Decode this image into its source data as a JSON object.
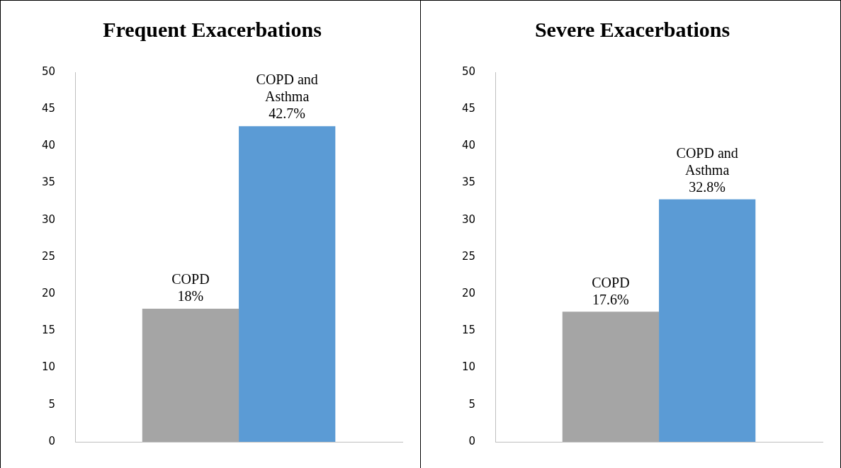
{
  "chart_data": [
    {
      "type": "bar",
      "title": "Frequent Exacerbations",
      "categories": [
        null
      ],
      "series": [
        {
          "name": "COPD",
          "color": "#a5a5a5",
          "values": [
            18
          ],
          "value_labels": [
            "18%"
          ]
        },
        {
          "name": "COPD and Asthma",
          "color": "#5b9bd5",
          "values": [
            42.7
          ],
          "value_labels": [
            "42.7%"
          ]
        }
      ],
      "ylim": [
        0,
        50
      ],
      "yticks": [
        0,
        5,
        10,
        15,
        20,
        25,
        30,
        35,
        40,
        45,
        50
      ],
      "grid": false,
      "legend": false
    },
    {
      "type": "bar",
      "title": "Severe Exacerbations",
      "categories": [
        null
      ],
      "series": [
        {
          "name": "COPD",
          "color": "#a5a5a5",
          "values": [
            17.6
          ],
          "value_labels": [
            "17.6%"
          ]
        },
        {
          "name": "COPD and Asthma",
          "color": "#5b9bd5",
          "values": [
            32.8
          ],
          "value_labels": [
            "32.8%"
          ]
        }
      ],
      "ylim": [
        0,
        50
      ],
      "yticks": [
        0,
        5,
        10,
        15,
        20,
        25,
        30,
        35,
        40,
        45,
        50
      ],
      "grid": false,
      "legend": false
    }
  ]
}
